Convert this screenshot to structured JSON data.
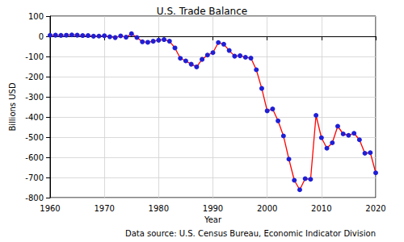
{
  "chart_data": {
    "type": "line",
    "title": "U.S. Trade Balance",
    "x_label": "Year",
    "y_label": "Billions USD",
    "annotation": "Data source: U.S. Census Bureau, Economic Indicator Division",
    "x": [
      1960,
      1961,
      1962,
      1963,
      1964,
      1965,
      1966,
      1967,
      1968,
      1969,
      1970,
      1971,
      1972,
      1973,
      1974,
      1975,
      1976,
      1977,
      1978,
      1979,
      1980,
      1981,
      1982,
      1983,
      1984,
      1985,
      1986,
      1987,
      1988,
      1989,
      1990,
      1991,
      1992,
      1993,
      1994,
      1995,
      1996,
      1997,
      1998,
      1999,
      2000,
      2001,
      2002,
      2003,
      2004,
      2005,
      2006,
      2007,
      2008,
      2009,
      2010,
      2011,
      2012,
      2013,
      2014,
      2015,
      2016,
      2017,
      2018,
      2019,
      2020
    ],
    "series": [
      {
        "name": "Trade Balance",
        "color": "#ff0000",
        "marker": "circle",
        "line_style": "solid",
        "values": [
          4.9,
          5.6,
          4.5,
          5.2,
          7.0,
          5.4,
          3.8,
          3.8,
          0.6,
          0.9,
          2.6,
          -2.3,
          -6.4,
          1.9,
          -4.3,
          12.4,
          -6.1,
          -27.2,
          -29.8,
          -24.6,
          -19.4,
          -16.2,
          -24.2,
          -57.8,
          -109,
          -121.9,
          -138.5,
          -151.7,
          -114.6,
          -93.1,
          -80.9,
          -31.1,
          -39.2,
          -70.3,
          -98.5,
          -96.4,
          -104.1,
          -108.3,
          -166.1,
          -258.6,
          -369.7,
          -360.4,
          -419.3,
          -493.9,
          -609,
          -714,
          -761,
          -706,
          -709,
          -392,
          -503,
          -555,
          -528,
          -446,
          -484,
          -491,
          -481,
          -513,
          -580,
          -577,
          -677
        ]
      }
    ],
    "xlim": [
      1960,
      2020
    ],
    "xticks": [
      1960,
      1970,
      1980,
      1990,
      2000,
      2010,
      2020
    ],
    "ylim": [
      -800,
      100
    ],
    "yticks": [
      -800,
      -700,
      -600,
      -500,
      -400,
      -300,
      -200,
      -100,
      0,
      100
    ],
    "grid": true
  }
}
